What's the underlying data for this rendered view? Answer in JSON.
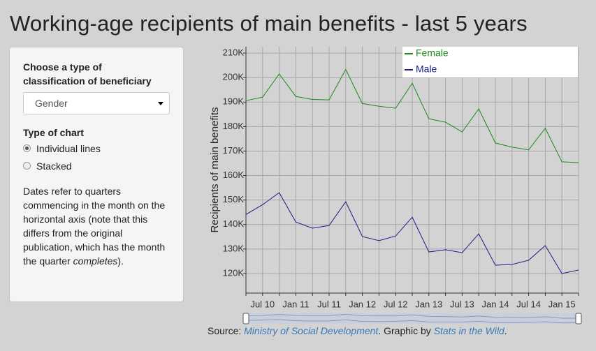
{
  "header": {
    "title": "Working-age recipients of main benefits - last 5 years"
  },
  "sidebar": {
    "classification_label": "Choose a type of classification of beneficiary",
    "classification_value": "Gender",
    "chart_type_label": "Type of chart",
    "options": [
      "Individual lines",
      "Stacked"
    ],
    "note_before": "Dates refer to quarters commencing in the month on the horizontal axis (note that this differs from the original publication, which has the month the quarter",
    "note_emphasis": "completes",
    "note_after": ")."
  },
  "chart_data": {
    "type": "line",
    "ylabel": "Recipients of main benefits",
    "categories": [
      null,
      "Jul 10",
      null,
      "Jan 11",
      null,
      "Jul 11",
      null,
      "Jan 12",
      null,
      "Jul 12",
      null,
      "Jan 13",
      null,
      "Jul 13",
      null,
      "Jan 14",
      null,
      "Jul 14",
      null,
      "Jan 15",
      null
    ],
    "series": [
      {
        "name": "Female",
        "color": "#1a8a1a",
        "values": [
          190600,
          192000,
          201500,
          192300,
          191100,
          190900,
          203300,
          189400,
          188300,
          187500,
          197700,
          183200,
          181800,
          177800,
          187200,
          173300,
          171600,
          170500,
          179300,
          165600,
          165300
        ]
      },
      {
        "name": "Male",
        "color": "#1a1a8a",
        "values": [
          144100,
          148100,
          153000,
          141000,
          138500,
          139600,
          149300,
          135100,
          133400,
          135300,
          143000,
          128800,
          129700,
          128500,
          136200,
          123400,
          123700,
          125400,
          131400,
          120000,
          121400
        ]
      }
    ],
    "ylim": [
      112000,
      212600
    ],
    "yticks": [
      {
        "value": 120000,
        "label": "120K"
      },
      {
        "value": 130000,
        "label": "130K"
      },
      {
        "value": 140000,
        "label": "140K"
      },
      {
        "value": 150000,
        "label": "150K"
      },
      {
        "value": 160000,
        "label": "160K"
      },
      {
        "value": 170000,
        "label": "170K"
      },
      {
        "value": 180000,
        "label": "180K"
      },
      {
        "value": 190000,
        "label": "190K"
      },
      {
        "value": 200000,
        "label": "200K"
      },
      {
        "value": 210000,
        "label": "210K"
      }
    ],
    "grid": true,
    "legend": "top-right"
  },
  "source": {
    "prefix": "Source:",
    "link1": "Ministry of Social Development",
    "mid": ". Graphic by",
    "link2": "Stats in the Wild",
    "end": "."
  }
}
